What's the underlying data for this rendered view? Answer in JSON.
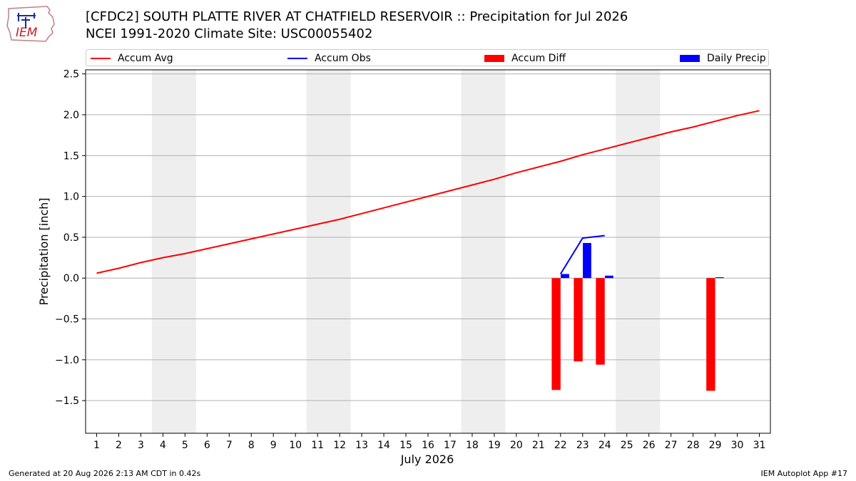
{
  "logo": {
    "text": "IEM"
  },
  "header": {
    "title_line1": "[CFDC2] SOUTH PLATTE RIVER  AT CHATFIELD RESERVOIR :: Precipitation for Jul 2026",
    "title_line2": "NCEI 1991-2020 Climate Site: USC00055402"
  },
  "footer": {
    "generated": "Generated at 20 Aug 2026 2:13 AM CDT in 0.42s",
    "app": "IEM Autoplot App #17"
  },
  "colors": {
    "accum_avg": "#ff0000",
    "accum_obs": "#0000ff",
    "accum_diff": "#ff0000",
    "daily_precip": "#0000ff",
    "weekend_shade": "#eeeeee",
    "grid": "#b0b0b0"
  },
  "chart_data": {
    "type": "bar",
    "xlabel": "July 2026",
    "ylabel": "Precipitation [inch]",
    "xlim": [
      0.5,
      31.5
    ],
    "ylim": [
      -1.9,
      2.55
    ],
    "yticks": [
      -1.5,
      -1.0,
      -0.5,
      0.0,
      0.5,
      1.0,
      1.5,
      2.0,
      2.5
    ],
    "ytick_labels": [
      "−1.5",
      "−1.0",
      "−0.5",
      "0.0",
      "0.5",
      "1.0",
      "1.5",
      "2.0",
      "2.5"
    ],
    "days": [
      1,
      2,
      3,
      4,
      5,
      6,
      7,
      8,
      9,
      10,
      11,
      12,
      13,
      14,
      15,
      16,
      17,
      18,
      19,
      20,
      21,
      22,
      23,
      24,
      25,
      26,
      27,
      28,
      29,
      30,
      31
    ],
    "grid": "horizontal",
    "legend_position": "top",
    "weekend_shading": [
      [
        4,
        5
      ],
      [
        11,
        12
      ],
      [
        18,
        19
      ],
      [
        25,
        26
      ]
    ],
    "legend": [
      {
        "name": "Accum Avg",
        "kind": "line",
        "color": "#ff0000"
      },
      {
        "name": "Accum Obs",
        "kind": "line",
        "color": "#0000ff"
      },
      {
        "name": "Accum Diff",
        "kind": "bar",
        "color": "#ff0000"
      },
      {
        "name": "Daily Precip",
        "kind": "bar",
        "color": "#0000ff"
      }
    ],
    "series": [
      {
        "name": "Accum Avg",
        "type": "line",
        "color": "#ff0000",
        "x": [
          1,
          2,
          3,
          4,
          5,
          6,
          7,
          8,
          9,
          10,
          11,
          12,
          13,
          14,
          15,
          16,
          17,
          18,
          19,
          20,
          21,
          22,
          23,
          24,
          25,
          26,
          27,
          28,
          29,
          30,
          31
        ],
        "values": [
          0.06,
          0.12,
          0.19,
          0.25,
          0.3,
          0.36,
          0.42,
          0.48,
          0.54,
          0.6,
          0.66,
          0.72,
          0.79,
          0.86,
          0.93,
          1.0,
          1.07,
          1.14,
          1.21,
          1.29,
          1.36,
          1.43,
          1.51,
          1.58,
          1.65,
          1.72,
          1.79,
          1.85,
          1.92,
          1.99,
          2.05
        ]
      },
      {
        "name": "Accum Obs",
        "type": "line",
        "color": "#0000ff",
        "x": [
          22,
          23,
          24
        ],
        "values": [
          0.05,
          0.49,
          0.52
        ]
      },
      {
        "name": "Accum Diff",
        "type": "bar",
        "color": "#ff0000",
        "x": [
          22,
          23,
          24,
          29
        ],
        "values": [
          -1.37,
          -1.02,
          -1.06,
          -1.38
        ]
      },
      {
        "name": "Daily Precip",
        "type": "bar",
        "color": "#0000ff",
        "x": [
          22,
          23,
          24,
          29
        ],
        "values": [
          0.05,
          0.43,
          0.03,
          0.01
        ]
      }
    ]
  }
}
